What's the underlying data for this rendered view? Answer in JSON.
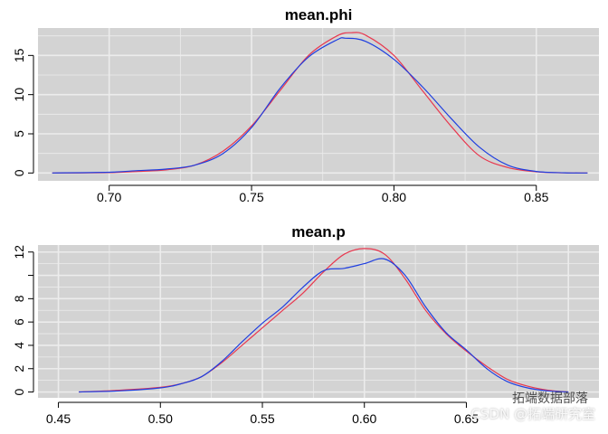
{
  "chart_data": [
    {
      "type": "line",
      "title": "mean.phi",
      "xlabel": "",
      "ylabel": "",
      "xlim": [
        0.675,
        0.872
      ],
      "ylim": [
        -1.0,
        18.5
      ],
      "xticks": [
        "0.70",
        "0.75",
        "0.80",
        "0.85"
      ],
      "xtick_values": [
        0.7,
        0.75,
        0.8,
        0.85
      ],
      "yticks": [
        "0",
        "5",
        "10",
        "15"
      ],
      "ytick_values": [
        0,
        5,
        10,
        15
      ],
      "grid": true,
      "series": [
        {
          "color": "#e8384f",
          "x": [
            0.68,
            0.7,
            0.71,
            0.72,
            0.73,
            0.74,
            0.75,
            0.76,
            0.77,
            0.78,
            0.785,
            0.79,
            0.8,
            0.81,
            0.82,
            0.83,
            0.84,
            0.85,
            0.86,
            0.868
          ],
          "y": [
            0.0,
            0.05,
            0.2,
            0.4,
            1.0,
            2.8,
            6.0,
            10.5,
            15.0,
            17.5,
            17.9,
            17.6,
            15.0,
            10.5,
            6.0,
            2.2,
            0.7,
            0.15,
            0.02,
            0.0
          ]
        },
        {
          "color": "#1f3fe0",
          "x": [
            0.68,
            0.7,
            0.71,
            0.72,
            0.73,
            0.74,
            0.75,
            0.76,
            0.77,
            0.78,
            0.783,
            0.79,
            0.8,
            0.81,
            0.82,
            0.83,
            0.84,
            0.85,
            0.86,
            0.868
          ],
          "y": [
            0.0,
            0.1,
            0.3,
            0.5,
            1.0,
            2.5,
            5.8,
            10.8,
            14.8,
            17.0,
            17.2,
            16.8,
            14.5,
            11.0,
            7.0,
            3.3,
            1.0,
            0.2,
            0.03,
            0.0
          ]
        }
      ]
    },
    {
      "type": "line",
      "title": "mean.p",
      "xlabel": "",
      "ylabel": "",
      "xlim": [
        0.44,
        0.715
      ],
      "ylim": [
        -0.5,
        12.6
      ],
      "xticks": [
        "0.45",
        "0.50",
        "0.55",
        "0.60",
        "0.65"
      ],
      "xtick_values": [
        0.45,
        0.5,
        0.55,
        0.6,
        0.65
      ],
      "yticks": [
        "0",
        "2",
        "4",
        "6",
        "8",
        "12"
      ],
      "ytick_values": [
        0,
        2,
        4,
        6,
        8,
        12
      ],
      "yminor_ticks": [
        10
      ],
      "grid": true,
      "series": [
        {
          "color": "#e8384f",
          "x": [
            0.46,
            0.48,
            0.5,
            0.51,
            0.52,
            0.53,
            0.54,
            0.55,
            0.56,
            0.57,
            0.58,
            0.59,
            0.6,
            0.61,
            0.62,
            0.63,
            0.64,
            0.65,
            0.66,
            0.67,
            0.68,
            0.69,
            0.7
          ],
          "y": [
            0.0,
            0.15,
            0.4,
            0.7,
            1.3,
            2.5,
            4.0,
            5.5,
            7.0,
            8.5,
            10.3,
            11.8,
            12.3,
            11.8,
            9.7,
            7.0,
            5.0,
            3.5,
            2.2,
            1.1,
            0.5,
            0.15,
            0.0
          ]
        },
        {
          "color": "#1f3fe0",
          "x": [
            0.46,
            0.48,
            0.5,
            0.51,
            0.52,
            0.53,
            0.54,
            0.55,
            0.56,
            0.57,
            0.58,
            0.59,
            0.6,
            0.61,
            0.62,
            0.63,
            0.64,
            0.65,
            0.66,
            0.67,
            0.68,
            0.69,
            0.7
          ],
          "y": [
            0.0,
            0.1,
            0.35,
            0.7,
            1.3,
            2.6,
            4.3,
            5.9,
            7.3,
            9.0,
            10.4,
            10.6,
            11.0,
            11.4,
            10.0,
            7.3,
            5.1,
            3.6,
            2.0,
            0.9,
            0.35,
            0.1,
            0.0
          ]
        }
      ]
    }
  ],
  "watermark": {
    "line1": "拓端数据部落",
    "line2": "CSDN @拓端研究室"
  }
}
